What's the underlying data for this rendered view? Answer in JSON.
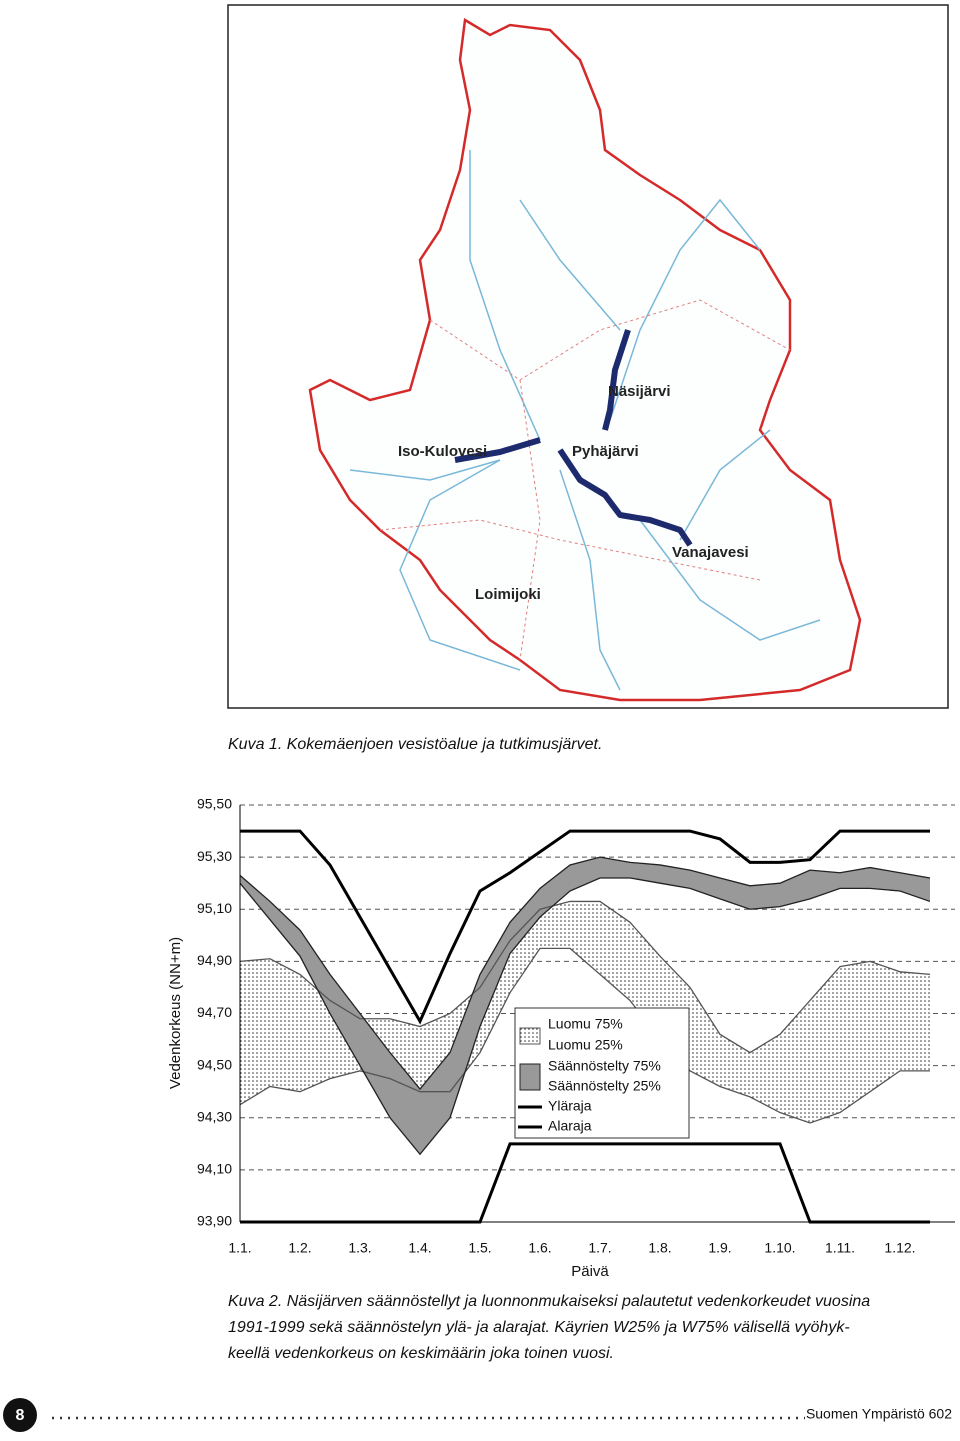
{
  "map": {
    "labels": [
      "Näsijärvi",
      "Iso-Kulovesi",
      "Pyhäjärvi",
      "Vanajavesi",
      "Loimijoki"
    ]
  },
  "figure1_caption": "Kuva 1. Kokemäenjoen vesistöalue ja tutkimusjärvet.",
  "chart_data": {
    "type": "line",
    "ylabel": "Vedenkorkeus (NN+m)",
    "xlabel": "Päivä",
    "categories": [
      "1.1.",
      null,
      "1.2.",
      null,
      "1.3.",
      null,
      "1.4.",
      null,
      "1.5.",
      null,
      "1.6.",
      null,
      "1.7.",
      null,
      "1.8.",
      null,
      "1.9.",
      null,
      "1.10.",
      null,
      "1.11.",
      null,
      "1.12.",
      null
    ],
    "ylim": [
      93.9,
      95.5
    ],
    "yticks": [
      {
        "value": 93.9,
        "label": "93,90"
      },
      {
        "value": 94.1,
        "label": "94,10"
      },
      {
        "value": 94.3,
        "label": "94,30"
      },
      {
        "value": 94.5,
        "label": "94,50"
      },
      {
        "value": 94.7,
        "label": "94,70"
      },
      {
        "value": 94.9,
        "label": "94,90"
      },
      {
        "value": 95.1,
        "label": "95,10"
      },
      {
        "value": 95.3,
        "label": "95,30"
      },
      {
        "value": 95.5,
        "label": "95,50"
      }
    ],
    "grid": true,
    "legend": "center",
    "series": [
      {
        "name": "Luomu 75%",
        "color": "#555555",
        "values": [
          94.9,
          94.91,
          94.85,
          94.75,
          94.68,
          94.68,
          94.65,
          94.7,
          94.8,
          94.98,
          95.1,
          95.13,
          95.13,
          95.05,
          94.92,
          94.8,
          94.62,
          94.55,
          94.62,
          94.75,
          94.88,
          94.9,
          94.86,
          94.85
        ]
      },
      {
        "name": "Luomu 25%",
        "color": "#555555",
        "values": [
          94.35,
          94.42,
          94.4,
          94.45,
          94.48,
          94.45,
          94.4,
          94.4,
          94.55,
          94.78,
          94.95,
          94.95,
          94.85,
          94.75,
          94.6,
          94.48,
          94.42,
          94.38,
          94.32,
          94.28,
          94.32,
          94.4,
          94.48,
          94.48
        ]
      },
      {
        "name": "Säännöstelty 75%",
        "color": "#222222",
        "values": [
          95.23,
          95.13,
          95.02,
          94.85,
          94.7,
          94.55,
          94.41,
          94.55,
          94.85,
          95.05,
          95.18,
          95.27,
          95.3,
          95.28,
          95.27,
          95.25,
          95.22,
          95.19,
          95.2,
          95.25,
          95.24,
          95.26,
          95.24,
          95.22
        ]
      },
      {
        "name": "Säännöstelty 25%",
        "color": "#222222",
        "values": [
          95.2,
          95.06,
          94.92,
          94.7,
          94.5,
          94.3,
          94.16,
          94.3,
          94.65,
          94.93,
          95.07,
          95.17,
          95.22,
          95.22,
          95.2,
          95.18,
          95.14,
          95.1,
          95.11,
          95.14,
          95.18,
          95.18,
          95.17,
          95.13
        ]
      },
      {
        "name": "Yläraja",
        "color": "#000000",
        "values": [
          95.4,
          95.4,
          95.4,
          95.27,
          95.07,
          94.87,
          94.67,
          94.93,
          95.17,
          95.24,
          95.32,
          95.4,
          95.4,
          95.4,
          95.4,
          95.4,
          95.37,
          95.28,
          95.28,
          95.29,
          95.4,
          95.4,
          95.4,
          95.4
        ]
      },
      {
        "name": "Alaraja",
        "color": "#000000",
        "values": [
          93.9,
          93.9,
          93.9,
          93.9,
          93.9,
          93.9,
          93.9,
          93.9,
          93.9,
          94.2,
          94.2,
          94.2,
          94.2,
          94.2,
          94.2,
          94.2,
          94.2,
          94.2,
          94.2,
          93.9,
          93.9,
          93.9,
          93.9,
          93.9
        ]
      }
    ]
  },
  "figure2_caption": [
    "Kuva 2. Näsijärven säännöstellyt ja luonnonmukaiseksi palautetut vedenkorkeudet vuosina",
    "1991-1999 sekä säännöstelyn ylä- ja alarajat. Käyrien W25% ja W75% välisellä vyöhyk-",
    "keellä vedenkorkeus on keskimäärin joka toinen vuosi."
  ],
  "footer": {
    "page_number": "8",
    "publication": "Suomen Ympäristö 602"
  }
}
